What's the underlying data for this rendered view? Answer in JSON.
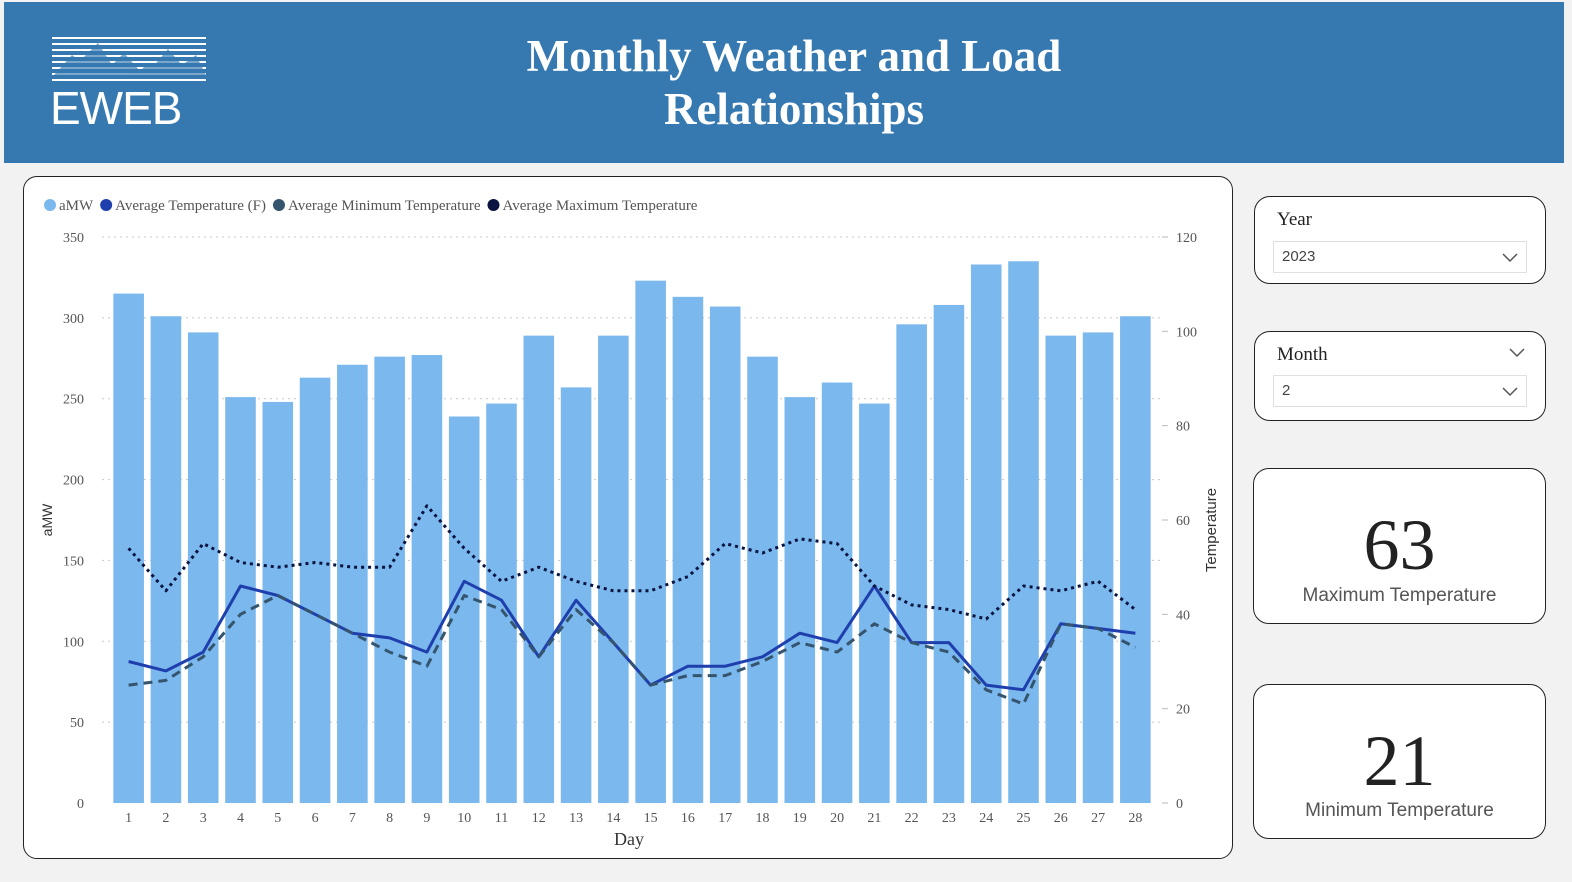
{
  "header": {
    "logo_text": "EWEB",
    "title_line1": "Monthly Weather and Load",
    "title_line2": "Relationships"
  },
  "slicers": {
    "year": {
      "label": "Year",
      "value": "2023"
    },
    "month": {
      "label": "Month",
      "value": "2"
    }
  },
  "kpis": {
    "max": {
      "value": "63",
      "label": "Maximum Temperature"
    },
    "min": {
      "value": "21",
      "label": "Minimum Temperature"
    }
  },
  "colors": {
    "header_bg": "#3579b0",
    "bar": "#7ab8ed",
    "avg_temp": "#1f3fad",
    "avg_min": "#35546e",
    "avg_max": "#0b1340"
  },
  "chart_data": {
    "type": "bar",
    "xlabel": "Day",
    "ylabel": "aMW",
    "y2label": "Temperature",
    "ylim": [
      0,
      350
    ],
    "y2lim": [
      0,
      120
    ],
    "yticks": [
      0,
      50,
      100,
      150,
      200,
      250,
      300,
      350
    ],
    "y2ticks": [
      0,
      20,
      40,
      60,
      80,
      100,
      120
    ],
    "grid": true,
    "legend_position": "top-left",
    "categories": [
      "1",
      "2",
      "3",
      "4",
      "5",
      "6",
      "7",
      "8",
      "9",
      "10",
      "11",
      "12",
      "13",
      "14",
      "15",
      "16",
      "17",
      "18",
      "19",
      "20",
      "21",
      "22",
      "23",
      "24",
      "25",
      "26",
      "27",
      "28"
    ],
    "series": [
      {
        "name": "aMW",
        "type": "bar",
        "axis": "left",
        "marker": "#7ab8ed",
        "values": [
          315,
          301,
          291,
          251,
          248,
          263,
          271,
          276,
          277,
          239,
          247,
          289,
          257,
          289,
          323,
          313,
          307,
          276,
          251,
          260,
          247,
          296,
          308,
          333,
          335,
          289,
          291,
          301
        ]
      },
      {
        "name": "Average Temperature (F)",
        "type": "line",
        "axis": "right",
        "style": "solid",
        "marker": "#1f3fad",
        "values": [
          30,
          28,
          32,
          46,
          44,
          40,
          36,
          35,
          32,
          47,
          43,
          31,
          43,
          34,
          25,
          29,
          29,
          31,
          36,
          34,
          46,
          34,
          34,
          25,
          24,
          38,
          37,
          36
        ]
      },
      {
        "name": "Average Minimum Temperature",
        "type": "line",
        "axis": "right",
        "style": "dashed",
        "marker": "#35546e",
        "values": [
          25,
          26,
          31,
          40,
          44,
          40,
          36,
          32,
          29,
          44,
          41,
          31,
          41,
          34,
          25,
          27,
          27,
          30,
          34,
          32,
          38,
          34,
          32,
          24,
          21,
          38,
          37,
          33
        ]
      },
      {
        "name": "Average Maximum Temperature",
        "type": "line",
        "axis": "right",
        "style": "dotted",
        "marker": "#0b1340",
        "values": [
          54,
          45,
          55,
          51,
          50,
          51,
          50,
          50,
          63,
          54,
          47,
          50,
          47,
          45,
          45,
          48,
          55,
          53,
          56,
          55,
          46,
          42,
          41,
          39,
          46,
          45,
          47,
          41
        ]
      }
    ]
  }
}
